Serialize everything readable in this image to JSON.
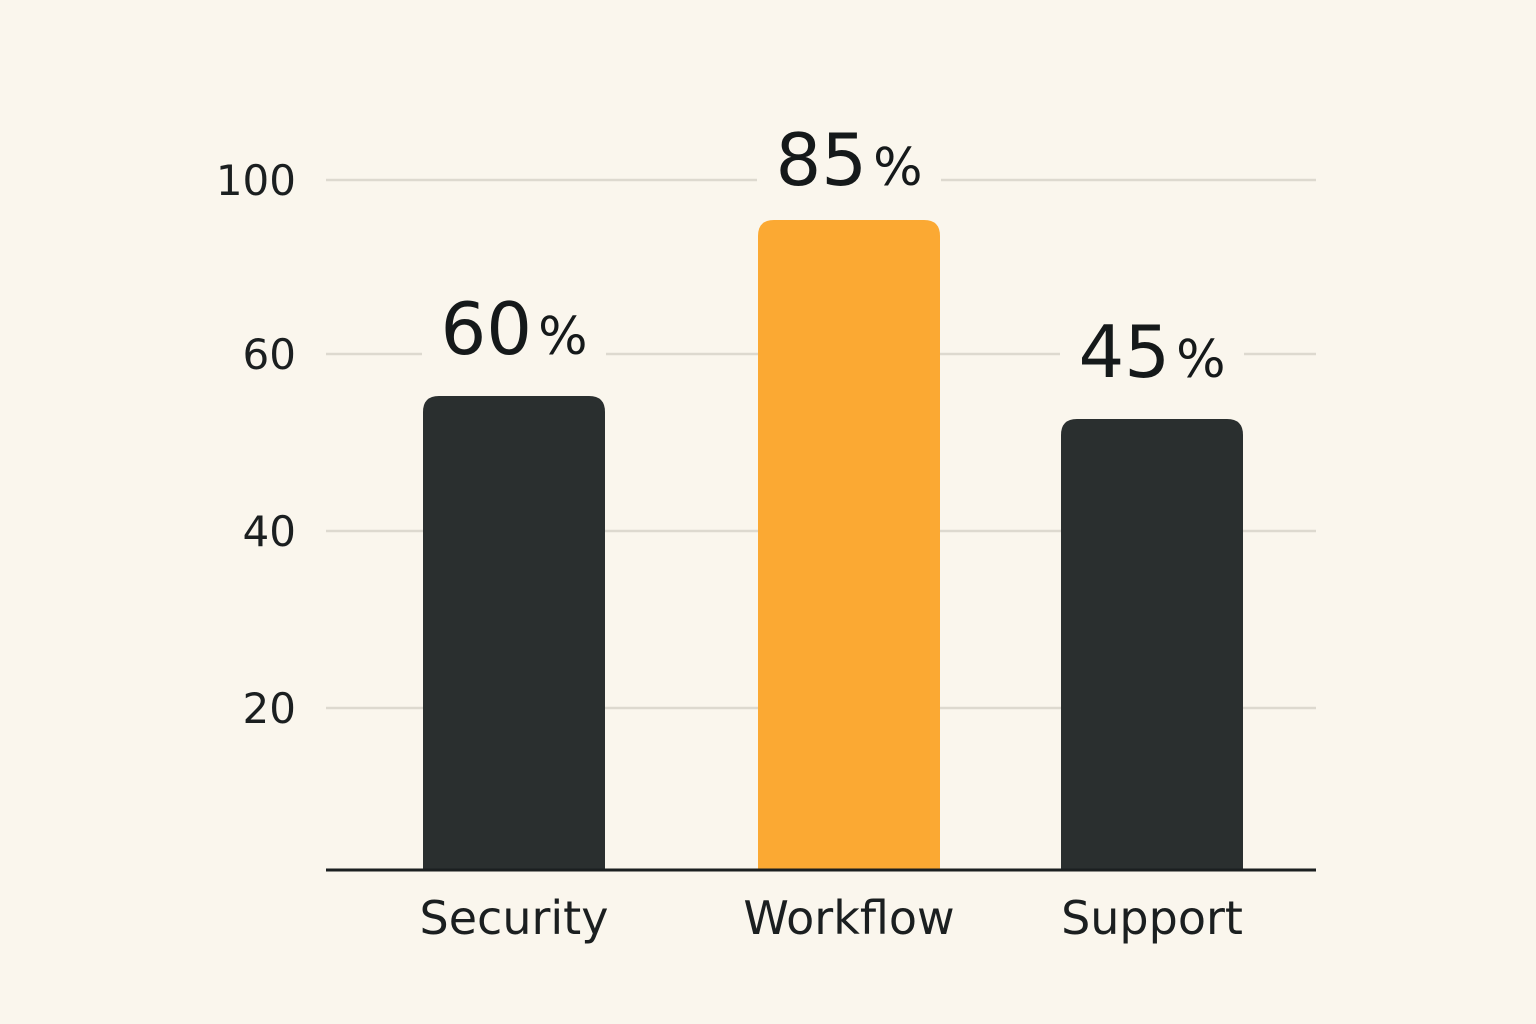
{
  "colors": {
    "background": "#faf6ed",
    "bar_default": "#2a2f2f",
    "bar_highlight": "#fba933",
    "gridline": "#ddd9cf",
    "axis": "#1b1f20"
  },
  "chart_data": {
    "type": "bar",
    "categories": [
      "Security",
      "Workflow",
      "Support"
    ],
    "values": [
      60,
      85,
      45
    ],
    "data_labels": [
      "60%",
      "85%",
      "45%"
    ],
    "highlight_index": 1,
    "y_ticks": [
      20,
      40,
      60,
      100
    ],
    "y_tick_labels": [
      "20",
      "40",
      "60",
      "100"
    ],
    "grid": true,
    "legend": "none"
  }
}
